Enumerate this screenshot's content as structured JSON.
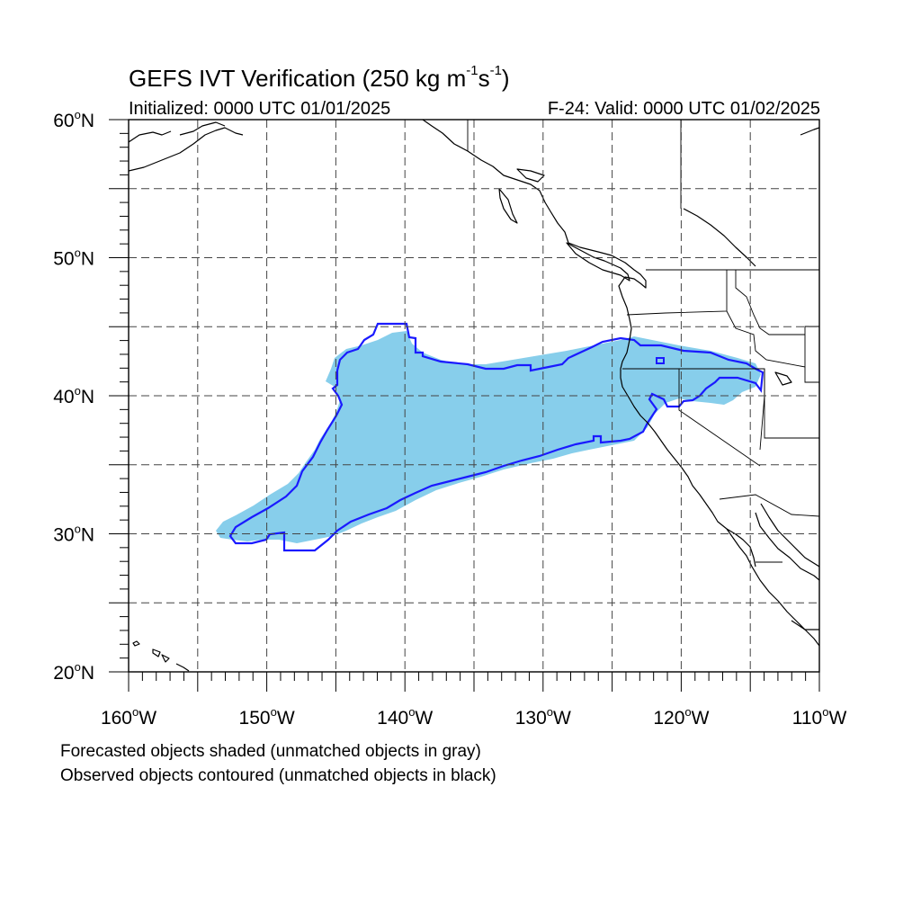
{
  "title": {
    "prefix": "GEFS IVT Verification (250 kg m",
    "exp1": "-1",
    "mid": "s",
    "exp2": "-1",
    "suffix": ")"
  },
  "initialized": "Initialized: 0000 UTC 01/01/2025",
  "valid": "F-24: Valid: 0000 UTC 01/02/2025",
  "notes": {
    "line1": "Forecasted objects shaded (unmatched objects in gray)",
    "line2": "Observed objects contoured (unmatched objects in black)"
  },
  "axes": {
    "lon_labels": [
      "160",
      "150",
      "140",
      "130",
      "120",
      "110"
    ],
    "lon_suffix": "W",
    "lat_labels": [
      "20",
      "30",
      "40",
      "50",
      "60"
    ],
    "lat_suffix": "N",
    "degree_symbol": "o"
  },
  "colors": {
    "forecast_fill": "#87CEEB",
    "observed_contour": "#1a1aff",
    "coastline": "#000000",
    "grid": "#555555"
  }
}
